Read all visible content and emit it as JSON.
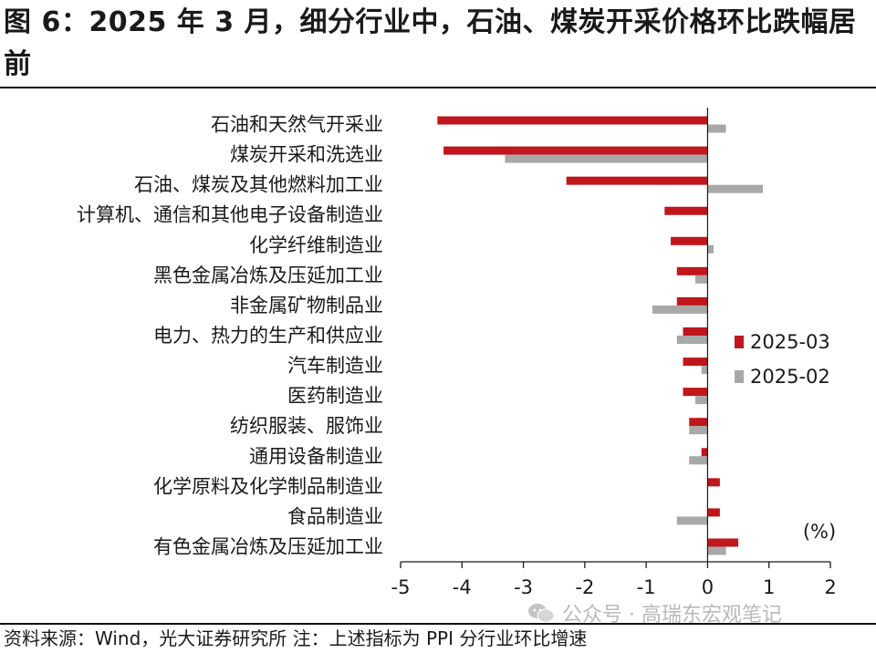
{
  "title": "图 6：2025 年 3 月，细分行业中，石油、煤炭开采价格环比跌幅居前",
  "source": "资料来源：Wind，光大证券研究所 注：上述指标为 PPI 分行业环比增速",
  "watermark": "公众号 · 高瑞东宏观笔记",
  "chart_data": {
    "type": "bar",
    "orientation": "horizontal",
    "categories": [
      "石油和天然气开采业",
      "煤炭开采和洗选业",
      "石油、煤炭及其他燃料加工业",
      "计算机、通信和其他电子设备制造业",
      "化学纤维制造业",
      "黑色金属冶炼及压延加工业",
      "非金属矿物制品业",
      "电力、热力的生产和供应业",
      "汽车制造业",
      "医药制造业",
      "纺织服装、服饰业",
      "通用设备制造业",
      "化学原料及化学制品制造业",
      "食品制造业",
      "有色金属冶炼及压延加工业"
    ],
    "series": [
      {
        "name": "2025-03",
        "color": "#c0161c",
        "values": [
          -4.4,
          -4.3,
          -2.3,
          -0.7,
          -0.6,
          -0.5,
          -0.5,
          -0.4,
          -0.4,
          -0.4,
          -0.3,
          -0.1,
          0.2,
          0.2,
          0.5
        ]
      },
      {
        "name": "2025-02",
        "color": "#a8a8a8",
        "values": [
          0.3,
          -3.3,
          0.9,
          0.0,
          0.1,
          -0.2,
          -0.9,
          -0.5,
          -0.1,
          -0.2,
          -0.3,
          -0.3,
          0.0,
          -0.5,
          0.3
        ]
      }
    ],
    "unit": "(%)",
    "xlim": [
      -5,
      2
    ],
    "xticks": [
      "-5",
      "-4",
      "-3",
      "-2",
      "-1",
      "0",
      "1",
      "2"
    ],
    "legend_position": "right"
  }
}
